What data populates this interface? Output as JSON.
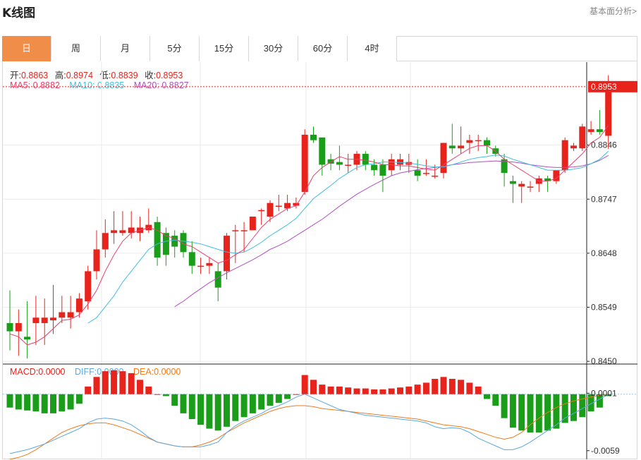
{
  "header": {
    "title": "K线图",
    "link": "基本面分析>"
  },
  "tabs": [
    "日",
    "周",
    "月",
    "5分",
    "15分",
    "30分",
    "60分",
    "4时"
  ],
  "active_tab": 0,
  "ohlc": {
    "open_label": "开:",
    "open": "0.8863",
    "high_label": "高:",
    "high": "0.8974",
    "low_label": "低:",
    "low": "0.8839",
    "close_label": "收:",
    "close": "0.8953"
  },
  "ma": {
    "ma5_label": "MA5:",
    "ma5": "0.8882",
    "ma10_label": "MA10:",
    "ma10": "0.8835",
    "ma20_label": "MA20:",
    "ma20": "0.8827"
  },
  "macd_legend": {
    "macd_label": "MACD:",
    "macd": "0.0000",
    "diff_label": "DIFF:",
    "diff": "0.0000",
    "dea_label": "DEA:",
    "dea": "0.0000"
  },
  "colors": {
    "up": "#e8231c",
    "down": "#1a9e1a",
    "ma5": "#e8406e",
    "ma10": "#3fbfe0",
    "ma20": "#b050c0",
    "diff": "#5aa8e0",
    "dea": "#f07a1a",
    "accent": "#f08d49"
  },
  "chart_data": {
    "type": "candlestick",
    "price_axis": {
      "ticks": [
        "0.8450",
        "0.8549",
        "0.8648",
        "0.8747",
        "0.8846"
      ],
      "range": [
        0.8445,
        0.8998
      ]
    },
    "last_price": "0.8953",
    "candles": [
      [
        0.852,
        0.8505,
        0.858,
        0.847
      ],
      [
        0.8505,
        0.852,
        0.8545,
        0.846
      ],
      [
        0.8495,
        0.849,
        0.856,
        0.8455
      ],
      [
        0.852,
        0.853,
        0.857,
        0.848
      ],
      [
        0.852,
        0.853,
        0.8565,
        0.848
      ],
      [
        0.8525,
        0.853,
        0.859,
        0.85
      ],
      [
        0.853,
        0.854,
        0.857,
        0.852
      ],
      [
        0.853,
        0.854,
        0.857,
        0.851
      ],
      [
        0.854,
        0.8565,
        0.8575,
        0.853
      ],
      [
        0.856,
        0.8615,
        0.8625,
        0.8545
      ],
      [
        0.8615,
        0.8655,
        0.869,
        0.86
      ],
      [
        0.8655,
        0.8685,
        0.871,
        0.864
      ],
      [
        0.8685,
        0.869,
        0.8725,
        0.8665
      ],
      [
        0.8685,
        0.869,
        0.8725,
        0.868
      ],
      [
        0.8685,
        0.8695,
        0.8725,
        0.8675
      ],
      [
        0.8685,
        0.8695,
        0.8715,
        0.867
      ],
      [
        0.869,
        0.87,
        0.873,
        0.8685
      ],
      [
        0.8705,
        0.864,
        0.8715,
        0.8625
      ],
      [
        0.8685,
        0.8645,
        0.8695,
        0.8625
      ],
      [
        0.868,
        0.866,
        0.869,
        0.864
      ],
      [
        0.8685,
        0.865,
        0.869,
        0.864
      ],
      [
        0.865,
        0.8625,
        0.867,
        0.861
      ],
      [
        0.8625,
        0.8625,
        0.864,
        0.861
      ],
      [
        0.8625,
        0.863,
        0.864,
        0.861
      ],
      [
        0.8615,
        0.8585,
        0.863,
        0.856
      ],
      [
        0.8615,
        0.868,
        0.8685,
        0.86
      ],
      [
        0.869,
        0.869,
        0.87,
        0.863
      ],
      [
        0.869,
        0.869,
        0.8705,
        0.865
      ],
      [
        0.869,
        0.8715,
        0.8715,
        0.869
      ],
      [
        0.8725,
        0.8727,
        0.873,
        0.87
      ],
      [
        0.8715,
        0.874,
        0.8745,
        0.8705
      ],
      [
        0.8735,
        0.8735,
        0.8755,
        0.8725
      ],
      [
        0.873,
        0.874,
        0.8755,
        0.8725
      ],
      [
        0.8735,
        0.874,
        0.875,
        0.873
      ],
      [
        0.876,
        0.8865,
        0.8875,
        0.8755
      ],
      [
        0.8865,
        0.8855,
        0.888,
        0.885
      ],
      [
        0.886,
        0.881,
        0.886,
        0.879
      ],
      [
        0.882,
        0.8812,
        0.883,
        0.88
      ],
      [
        0.8815,
        0.881,
        0.8845,
        0.88
      ],
      [
        0.881,
        0.881,
        0.883,
        0.8795
      ],
      [
        0.881,
        0.883,
        0.8835,
        0.88
      ],
      [
        0.883,
        0.881,
        0.8835,
        0.88
      ],
      [
        0.881,
        0.88,
        0.882,
        0.879
      ],
      [
        0.881,
        0.879,
        0.882,
        0.876
      ],
      [
        0.88,
        0.882,
        0.883,
        0.879
      ],
      [
        0.881,
        0.882,
        0.883,
        0.88
      ],
      [
        0.881,
        0.8815,
        0.883,
        0.8795
      ],
      [
        0.88,
        0.879,
        0.882,
        0.878
      ],
      [
        0.8795,
        0.8795,
        0.882,
        0.879
      ],
      [
        0.879,
        0.879,
        0.881,
        0.8785
      ],
      [
        0.8795,
        0.885,
        0.885,
        0.8785
      ],
      [
        0.8845,
        0.884,
        0.8885,
        0.883
      ],
      [
        0.884,
        0.8845,
        0.888,
        0.883
      ],
      [
        0.885,
        0.8855,
        0.8865,
        0.883
      ],
      [
        0.8855,
        0.8855,
        0.8865,
        0.8835
      ],
      [
        0.8855,
        0.8845,
        0.886,
        0.883
      ],
      [
        0.884,
        0.883,
        0.8845,
        0.8825
      ],
      [
        0.882,
        0.8795,
        0.883,
        0.877
      ],
      [
        0.878,
        0.8775,
        0.879,
        0.874
      ],
      [
        0.877,
        0.8775,
        0.878,
        0.874
      ],
      [
        0.877,
        0.877,
        0.878,
        0.876
      ],
      [
        0.8775,
        0.8785,
        0.879,
        0.876
      ],
      [
        0.8785,
        0.878,
        0.879,
        0.876
      ],
      [
        0.878,
        0.88,
        0.88,
        0.8775
      ],
      [
        0.88,
        0.8855,
        0.886,
        0.8795
      ],
      [
        0.884,
        0.8845,
        0.885,
        0.8835
      ],
      [
        0.884,
        0.888,
        0.8885,
        0.8835
      ],
      [
        0.887,
        0.8875,
        0.889,
        0.8865
      ],
      [
        0.8875,
        0.887,
        0.891,
        0.8865
      ],
      [
        0.8863,
        0.8953,
        0.8974,
        0.8839
      ]
    ],
    "ma5": [
      0.85,
      0.8495,
      0.848,
      0.8485,
      0.8495,
      0.851,
      0.8525,
      0.8527,
      0.8535,
      0.8555,
      0.858,
      0.8615,
      0.8645,
      0.867,
      0.8685,
      0.869,
      0.8695,
      0.869,
      0.868,
      0.8675,
      0.8665,
      0.866,
      0.865,
      0.864,
      0.863,
      0.8635,
      0.8645,
      0.8655,
      0.8675,
      0.8695,
      0.871,
      0.872,
      0.873,
      0.8735,
      0.876,
      0.879,
      0.8805,
      0.8815,
      0.8825,
      0.882,
      0.882,
      0.8818,
      0.8815,
      0.881,
      0.881,
      0.8808,
      0.8808,
      0.8805,
      0.8802,
      0.88,
      0.881,
      0.882,
      0.883,
      0.884,
      0.8845,
      0.8845,
      0.8835,
      0.882,
      0.881,
      0.88,
      0.879,
      0.878,
      0.878,
      0.8785,
      0.88,
      0.8815,
      0.883,
      0.885,
      0.886,
      0.8882
    ],
    "ma10": [
      null,
      null,
      null,
      null,
      null,
      null,
      null,
      null,
      null,
      0.852,
      0.853,
      0.855,
      0.857,
      0.8595,
      0.8615,
      0.8635,
      0.8655,
      0.8665,
      0.867,
      0.8672,
      0.867,
      0.8668,
      0.8665,
      0.866,
      0.8655,
      0.865,
      0.8648,
      0.865,
      0.8658,
      0.8668,
      0.868,
      0.869,
      0.87,
      0.8712,
      0.873,
      0.8748,
      0.876,
      0.8772,
      0.8785,
      0.8795,
      0.8805,
      0.881,
      0.8812,
      0.8815,
      0.8815,
      0.8814,
      0.8813,
      0.8811,
      0.8808,
      0.8806,
      0.8806,
      0.881,
      0.8815,
      0.882,
      0.8823,
      0.8825,
      0.8828,
      0.8826,
      0.882,
      0.8815,
      0.881,
      0.8805,
      0.88,
      0.88,
      0.88,
      0.8802,
      0.8805,
      0.8812,
      0.882,
      0.8835
    ],
    "ma20": [
      null,
      null,
      null,
      null,
      null,
      null,
      null,
      null,
      null,
      null,
      null,
      null,
      null,
      null,
      null,
      null,
      null,
      null,
      null,
      0.855,
      0.856,
      0.8572,
      0.8583,
      0.8594,
      0.8603,
      0.8612,
      0.862,
      0.8628,
      0.8636,
      0.8645,
      0.8655,
      0.8662,
      0.867,
      0.868,
      0.869,
      0.87,
      0.871,
      0.8722,
      0.8734,
      0.8745,
      0.8756,
      0.8765,
      0.8774,
      0.8782,
      0.879,
      0.8795,
      0.8798,
      0.8801,
      0.8803,
      0.8805,
      0.8807,
      0.881,
      0.8812,
      0.8814,
      0.8815,
      0.8816,
      0.8817,
      0.8816,
      0.8815,
      0.8813,
      0.881,
      0.8808,
      0.8806,
      0.8805,
      0.8805,
      0.8806,
      0.8808,
      0.8812,
      0.8818,
      0.8827
    ],
    "macd_axis": {
      "ticks": [
        "0.0001",
        "-0.0059"
      ],
      "range": [
        -0.0068,
        0.003
      ]
    },
    "macd_hist": [
      -0.0014,
      -0.0016,
      -0.0017,
      -0.0018,
      -0.002,
      -0.002,
      -0.0018,
      -0.0016,
      -0.001,
      0.0008,
      0.0018,
      0.0024,
      0.0025,
      0.0024,
      0.0022,
      0.0015,
      0.0008,
      0.0,
      -0.0002,
      -0.0012,
      -0.002,
      -0.0026,
      -0.0032,
      -0.0036,
      -0.0038,
      -0.0034,
      -0.0028,
      -0.0024,
      -0.002,
      -0.0016,
      -0.0012,
      -0.0009,
      -0.0005,
      0.0,
      0.002,
      0.0015,
      0.001,
      0.0008,
      0.0008,
      0.0007,
      0.0006,
      0.0006,
      0.0005,
      0.0005,
      0.0006,
      0.0007,
      0.0008,
      0.001,
      0.0012,
      0.0016,
      0.0018,
      0.0016,
      0.0015,
      0.0012,
      0.0008,
      -0.0005,
      -0.0012,
      -0.0025,
      -0.0035,
      -0.0038,
      -0.004,
      -0.004,
      -0.0038,
      -0.0036,
      -0.003,
      -0.0028,
      -0.0024,
      -0.0018,
      -0.0014,
      -0.0002
    ],
    "macd_diff": [
      -0.0062,
      -0.006,
      -0.0058,
      -0.0055,
      -0.0052,
      -0.0048,
      -0.0044,
      -0.004,
      -0.0036,
      -0.003,
      -0.0026,
      -0.0025,
      -0.0026,
      -0.0028,
      -0.0032,
      -0.0038,
      -0.0045,
      -0.005,
      -0.0052,
      -0.0054,
      -0.0055,
      -0.0055,
      -0.0055,
      -0.0053,
      -0.005,
      -0.004,
      -0.0033,
      -0.0028,
      -0.0024,
      -0.002,
      -0.0015,
      -0.0012,
      -0.0008,
      -0.0003,
      0.0,
      -0.0004,
      -0.0008,
      -0.0012,
      -0.0016,
      -0.0018,
      -0.002,
      -0.0022,
      -0.0023,
      -0.0024,
      -0.0025,
      -0.0026,
      -0.0027,
      -0.0028,
      -0.003,
      -0.0034,
      -0.0036,
      -0.0035,
      -0.0036,
      -0.004,
      -0.0046,
      -0.005,
      -0.0054,
      -0.0058,
      -0.0058,
      -0.0055,
      -0.005,
      -0.0044,
      -0.0038,
      -0.0032,
      -0.0025,
      -0.002,
      -0.0015,
      -0.001,
      -0.0005,
      0.0
    ],
    "macd_dea": [
      -0.0068,
      -0.0066,
      -0.0063,
      -0.0058,
      -0.0052,
      -0.0046,
      -0.004,
      -0.0036,
      -0.0033,
      -0.0031,
      -0.003,
      -0.003,
      -0.0032,
      -0.0035,
      -0.0038,
      -0.0042,
      -0.0046,
      -0.005,
      -0.0052,
      -0.0054,
      -0.0055,
      -0.0055,
      -0.0053,
      -0.005,
      -0.0046,
      -0.004,
      -0.0035,
      -0.003,
      -0.0026,
      -0.0022,
      -0.0018,
      -0.0015,
      -0.0013,
      -0.0012,
      -0.0012,
      -0.0013,
      -0.0015,
      -0.0016,
      -0.0017,
      -0.0018,
      -0.0019,
      -0.002,
      -0.0021,
      -0.0022,
      -0.0023,
      -0.0024,
      -0.0025,
      -0.0026,
      -0.0028,
      -0.003,
      -0.0032,
      -0.0033,
      -0.0034,
      -0.0036,
      -0.0039,
      -0.0042,
      -0.0045,
      -0.0047,
      -0.0045,
      -0.004,
      -0.0032,
      -0.0025,
      -0.0019,
      -0.0014,
      -0.001,
      -0.0007,
      -0.0005,
      -0.0003,
      -0.0001,
      0.0
    ]
  }
}
